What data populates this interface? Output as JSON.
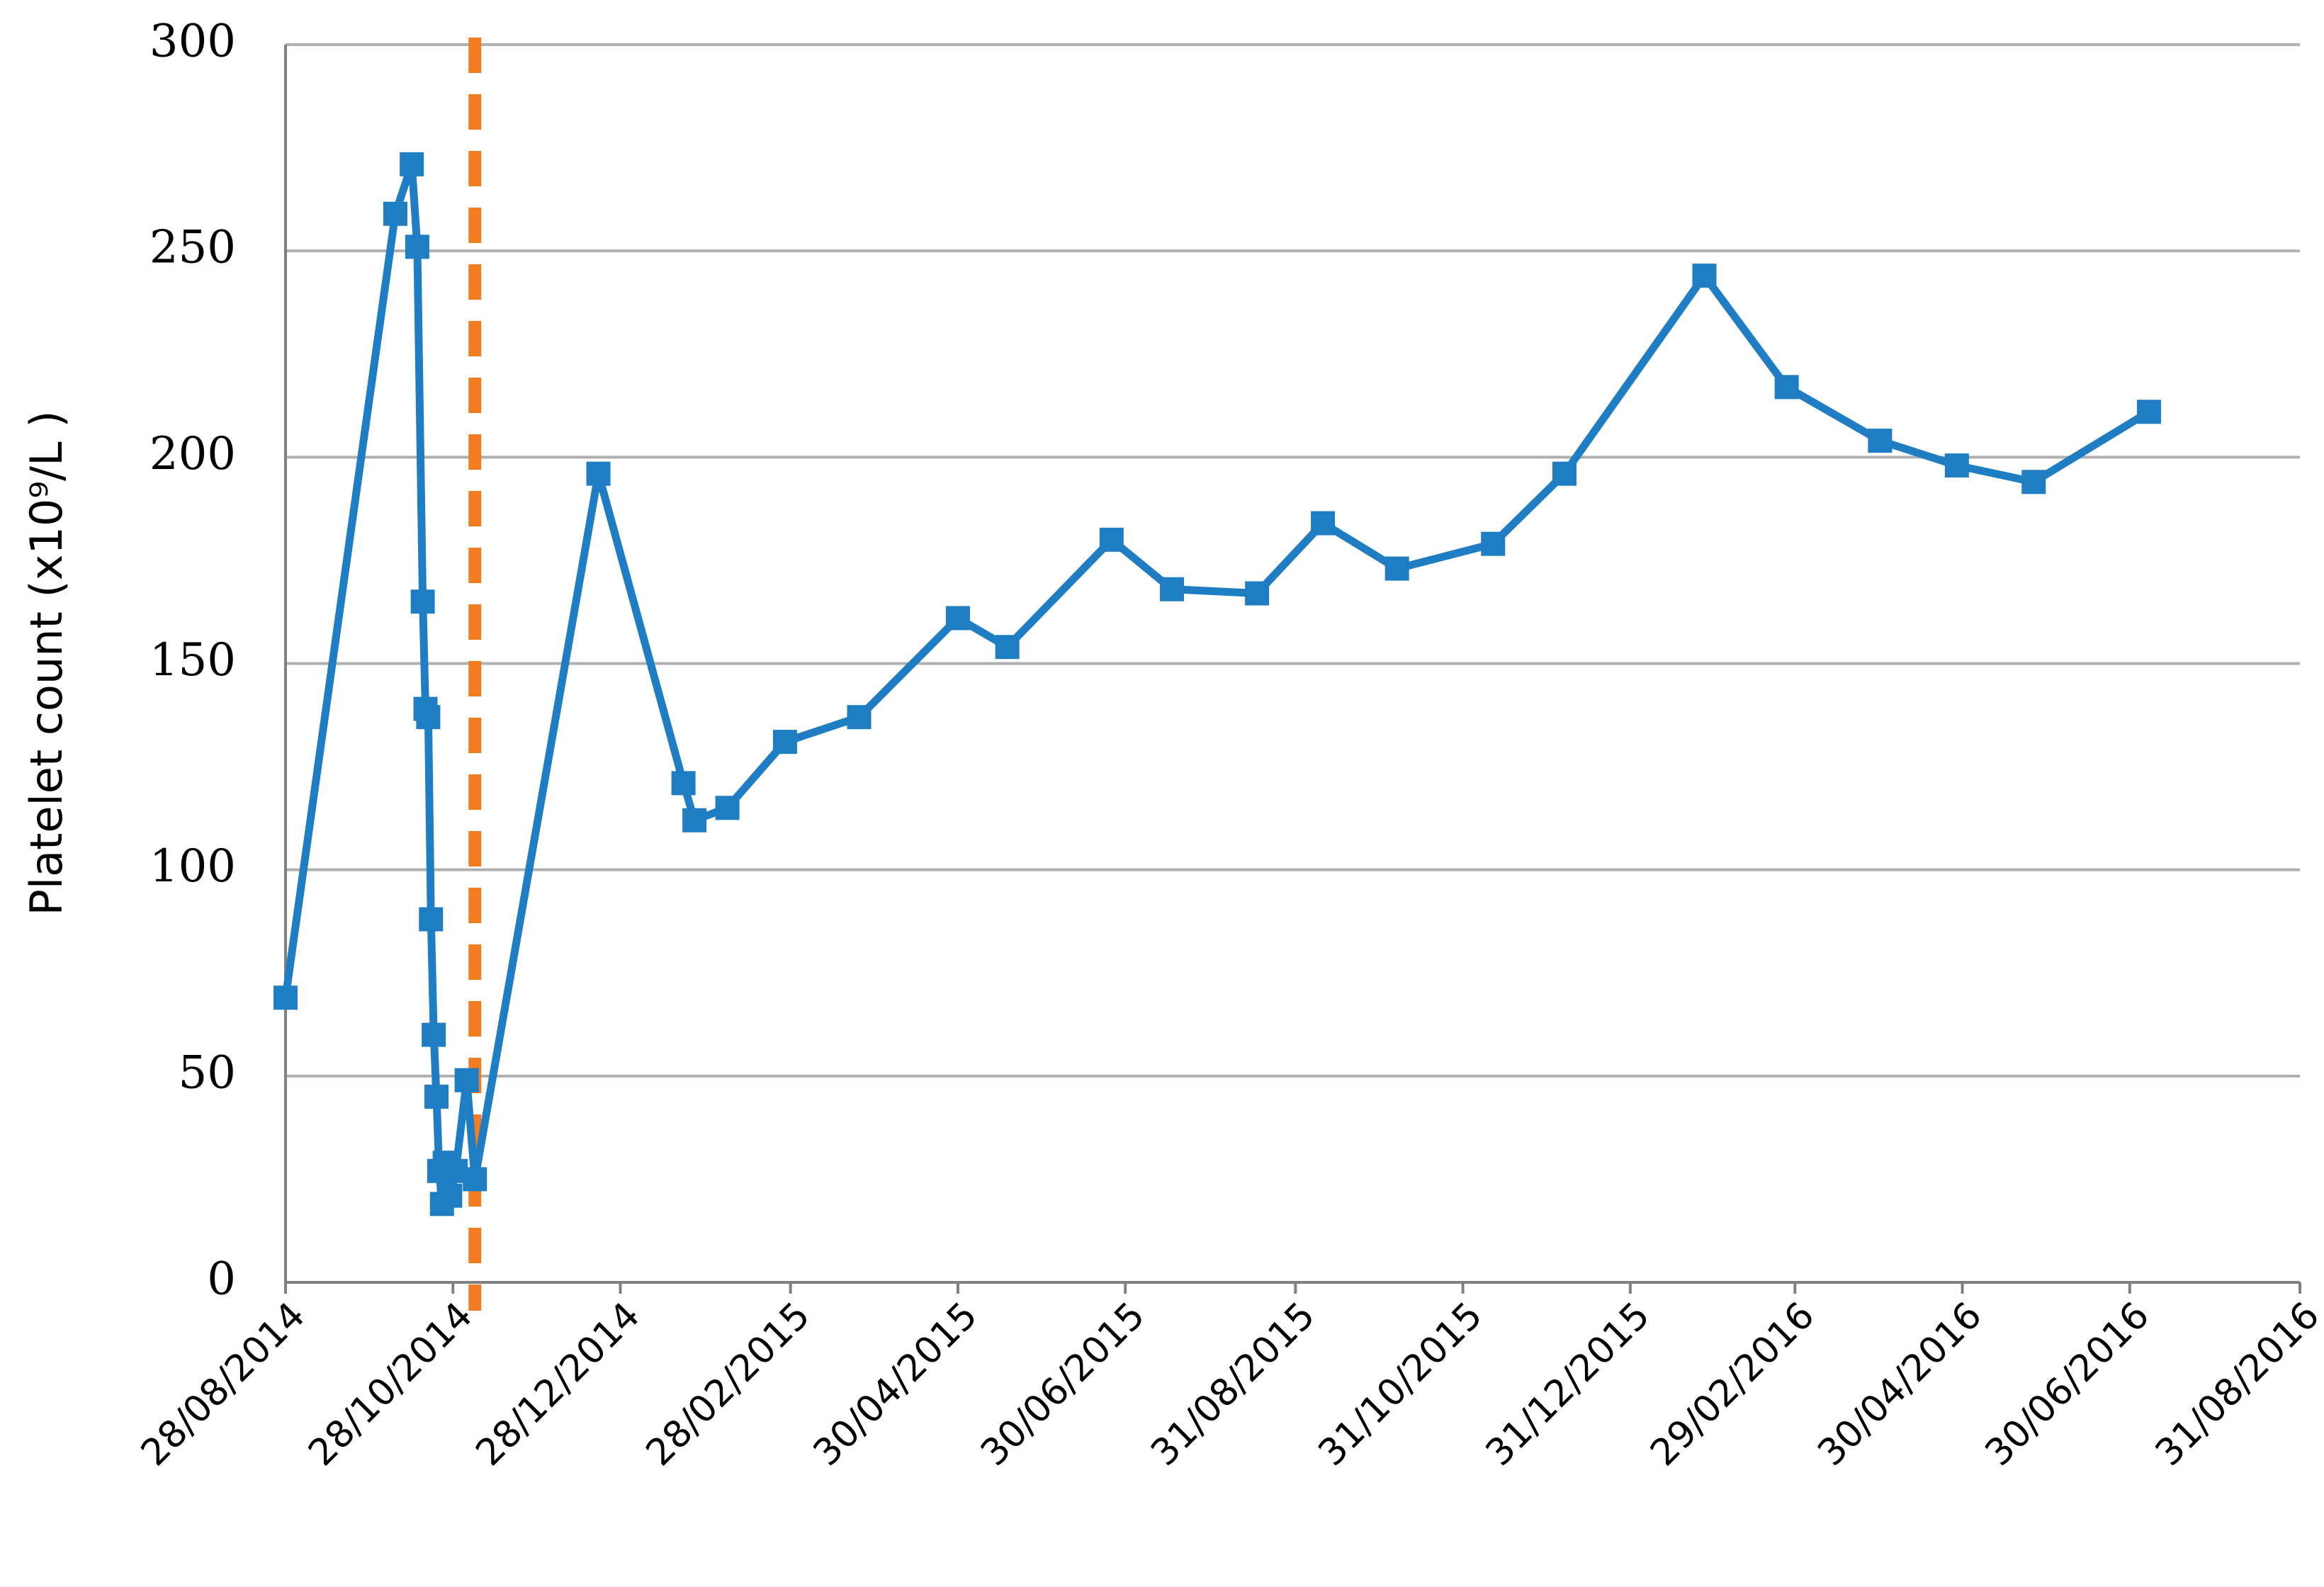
{
  "chart_data": {
    "type": "line",
    "y_label": "Platelet count (x10⁹/L )",
    "x": [
      "2014-08-28",
      "2014-10-07",
      "2014-10-13",
      "2014-10-15",
      "2014-10-17",
      "2014-10-18",
      "2014-10-19",
      "2014-10-20",
      "2014-10-21",
      "2014-10-22",
      "2014-10-23",
      "2014-10-24",
      "2014-10-25",
      "2014-10-27",
      "2014-10-29",
      "2014-11-02",
      "2014-11-05",
      "2014-12-20",
      "2015-01-20",
      "2015-01-24",
      "2015-02-05",
      "2015-02-26",
      "2015-03-25",
      "2015-04-30",
      "2015-05-18",
      "2015-06-25",
      "2015-07-17",
      "2015-08-17",
      "2015-09-10",
      "2015-10-07",
      "2015-11-11",
      "2015-12-07",
      "2016-01-27",
      "2016-02-26",
      "2016-03-31",
      "2016-04-28",
      "2016-05-26",
      "2016-07-07"
    ],
    "series": [
      {
        "name": "Platelet count",
        "color": "#1f7dc4",
        "values": [
          69,
          259,
          271,
          251,
          165,
          139,
          137,
          88,
          60,
          45,
          27,
          19,
          29,
          21,
          27,
          49,
          25,
          196,
          121,
          112,
          115,
          131,
          137,
          161,
          154,
          180,
          168,
          167,
          184,
          173,
          179,
          196,
          244,
          217,
          204,
          198,
          194,
          211
        ]
      }
    ],
    "xlim": [
      "2014-08-28",
      "2016-08-31"
    ],
    "xticks": [
      {
        "value": "2014-08-28",
        "label": "28/08/2014"
      },
      {
        "value": "2014-10-28",
        "label": "28/10/2014"
      },
      {
        "value": "2014-12-28",
        "label": "28/12/2014"
      },
      {
        "value": "2015-02-28",
        "label": "28/02/2015"
      },
      {
        "value": "2015-04-30",
        "label": "30/04/2015"
      },
      {
        "value": "2015-06-30",
        "label": "30/06/2015"
      },
      {
        "value": "2015-08-31",
        "label": "31/08/2015"
      },
      {
        "value": "2015-10-31",
        "label": "31/10/2015"
      },
      {
        "value": "2015-12-31",
        "label": "31/12/2015"
      },
      {
        "value": "2016-02-29",
        "label": "29/02/2016"
      },
      {
        "value": "2016-04-30",
        "label": "30/04/2016"
      },
      {
        "value": "2016-06-30",
        "label": "30/06/2016"
      },
      {
        "value": "2016-08-31",
        "label": "31/08/2016"
      }
    ],
    "ylim": [
      0,
      300
    ],
    "yticks": [
      0,
      50,
      100,
      150,
      200,
      250,
      300
    ],
    "grid": true,
    "marker_x": "2014-11-05",
    "marker_color": "#f47c20"
  }
}
